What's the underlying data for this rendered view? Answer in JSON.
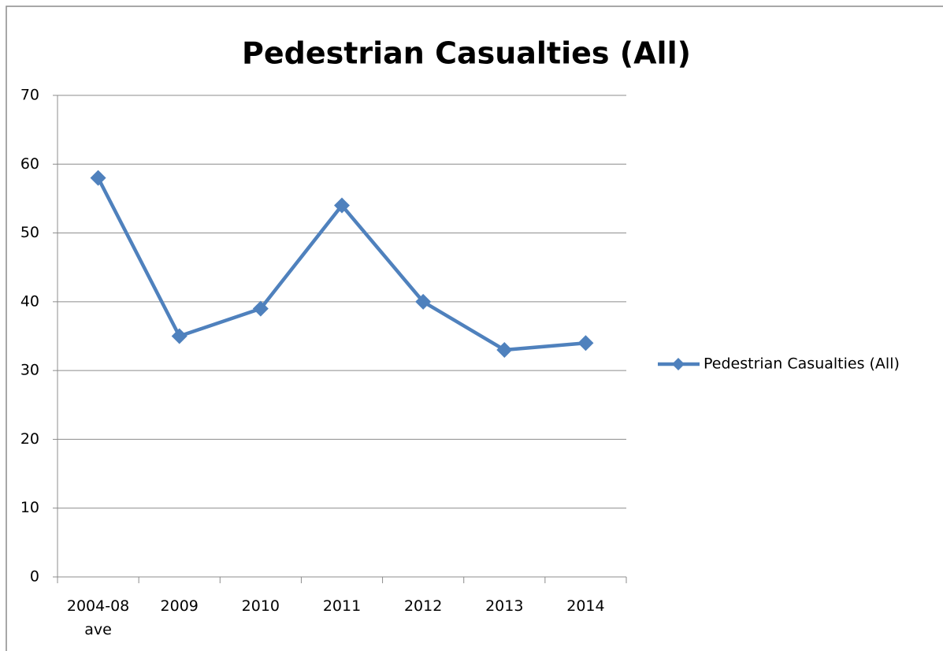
{
  "chart_data": {
    "type": "line",
    "title": "Pedestrian Casualties (All)",
    "categories": [
      "2004-08 ave",
      "2009",
      "2010",
      "2011",
      "2012",
      "2013",
      "2014"
    ],
    "series": [
      {
        "name": "Pedestrian Casualties (All)",
        "color": "#4f81bd",
        "values": [
          58,
          35,
          39,
          54,
          40,
          33,
          34
        ]
      }
    ],
    "ylim": [
      0,
      70
    ],
    "yticks": [
      0,
      10,
      20,
      30,
      40,
      50,
      60,
      70
    ],
    "grid": true,
    "legend": "right"
  }
}
